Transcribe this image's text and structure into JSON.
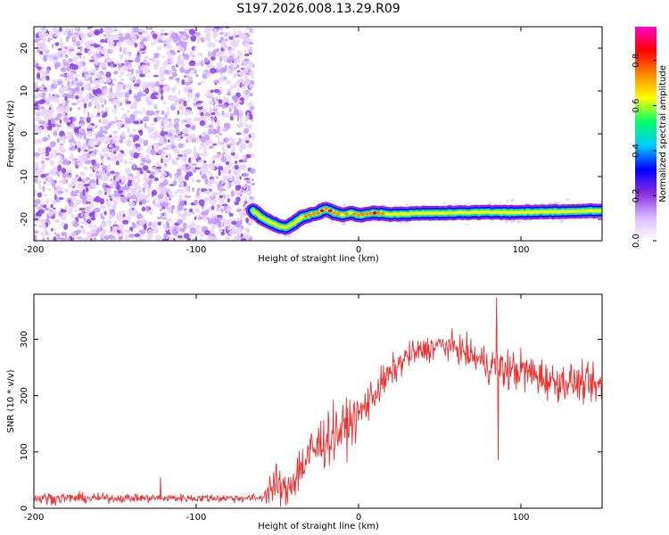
{
  "title": "S197.2026.008.13.29.R09",
  "chart_data": [
    {
      "type": "heatmap",
      "xlabel": "Height of straight line (km)",
      "ylabel": "Frequency (Hz)",
      "xlim": [
        -200,
        150
      ],
      "ylim": [
        -25,
        25
      ],
      "xticks": [
        -200,
        -100,
        0,
        100
      ],
      "yticks": [
        -20,
        -10,
        0,
        10,
        20
      ],
      "colorbar": {
        "label": "Normalized spectral amplitude",
        "range": [
          0,
          0.95
        ],
        "ticks": [
          0.0,
          0.2,
          0.4,
          0.6,
          0.8
        ],
        "tick_labels": [
          "0.0",
          "0.2",
          "0.4",
          "0.6",
          "0.8"
        ],
        "colormap": [
          "#ffffff",
          "#d8b8ff",
          "#8a2be2",
          "#0000ff",
          "#00ccff",
          "#00ff66",
          "#ffff00",
          "#ff8800",
          "#ff0000",
          "#ff00cc"
        ]
      },
      "noise_region": {
        "x_from": -200,
        "x_to": -65,
        "description": "broadband noise, amplitude ~0.1-0.25"
      },
      "signal_track": {
        "x": [
          -65,
          -60,
          -55,
          -50,
          -45,
          -40,
          -35,
          -30,
          -25,
          -20,
          -15,
          -10,
          -5,
          0,
          10,
          20,
          40,
          60,
          80,
          100,
          120,
          150
        ],
        "y": [
          -18,
          -19.5,
          -20.5,
          -21.5,
          -22,
          -21,
          -19.5,
          -19,
          -18.5,
          -17.5,
          -18.5,
          -19,
          -18.5,
          -19,
          -18.5,
          -18.8,
          -18.6,
          -18.5,
          -18.3,
          -18.4,
          -18.2,
          -18.0
        ],
        "peak_amplitude": [
          0.4,
          0.45,
          0.5,
          0.5,
          0.55,
          0.6,
          0.65,
          0.7,
          0.75,
          0.8,
          0.75,
          0.7,
          0.65,
          0.7,
          0.8,
          0.6,
          0.55,
          0.55,
          0.55,
          0.5,
          0.5,
          0.5
        ]
      }
    },
    {
      "type": "line",
      "xlabel": "Height of straight line (km)",
      "ylabel": "SNR (10 * v/v)",
      "xlim": [
        -200,
        150
      ],
      "ylim": [
        0,
        380
      ],
      "xticks": [
        -200,
        -100,
        0,
        100
      ],
      "yticks": [
        0,
        100,
        200,
        300
      ],
      "color": "#ee3030",
      "series": [
        {
          "name": "SNR",
          "x": [
            -200,
            -150,
            -100,
            -60,
            -55,
            -50,
            -45,
            -40,
            -30,
            -20,
            -10,
            0,
            10,
            20,
            30,
            40,
            50,
            60,
            70,
            80,
            85,
            90,
            100,
            110,
            120,
            130,
            140,
            150
          ],
          "y": [
            18,
            18,
            18,
            18,
            35,
            40,
            25,
            55,
            95,
            125,
            140,
            165,
            205,
            240,
            270,
            280,
            290,
            285,
            270,
            255,
            250,
            245,
            245,
            235,
            225,
            225,
            220,
            215
          ]
        }
      ],
      "noise_amplitude": [
        12,
        8,
        8,
        8,
        30,
        40,
        35,
        45,
        55,
        55,
        50,
        40,
        35,
        30,
        25,
        25,
        25,
        25,
        30,
        35,
        40,
        40,
        40,
        40,
        35,
        35,
        35,
        35
      ],
      "spikes": [
        {
          "x": -122,
          "y": 55
        },
        {
          "x": 85,
          "y": 375
        },
        {
          "x": 86,
          "y": 85
        }
      ]
    }
  ]
}
